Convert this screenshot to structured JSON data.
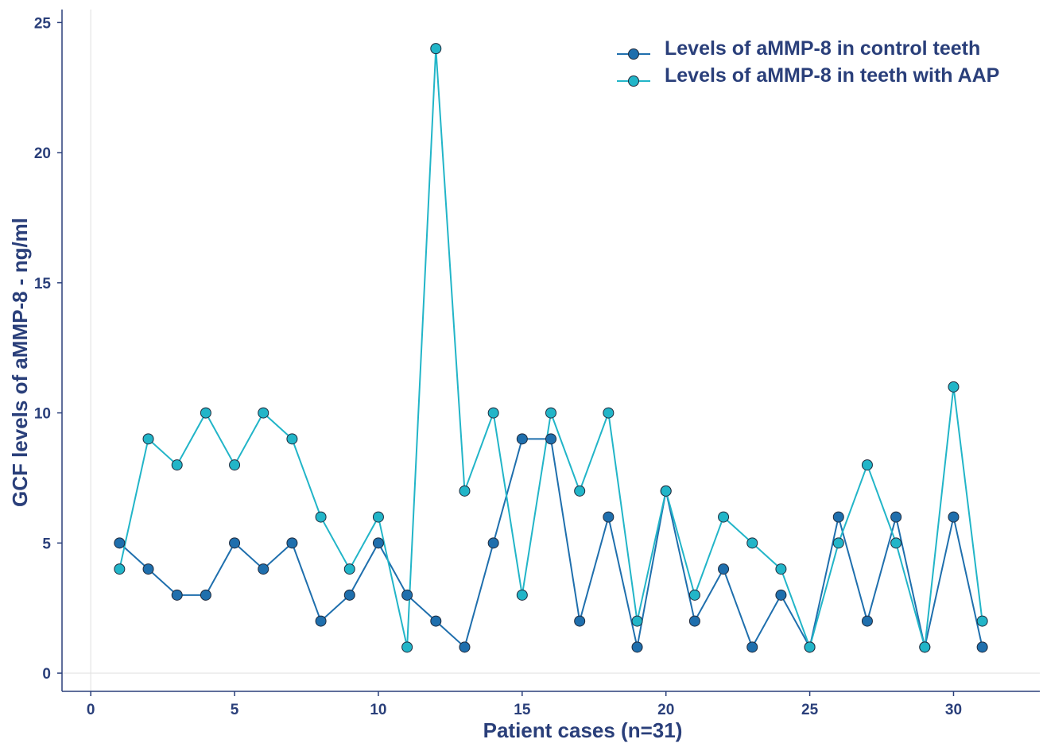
{
  "colors": {
    "axis": "#2a3f7a",
    "grid": "#e3e3e3",
    "marker_edge": "#1f2a3c"
  },
  "chart_data": {
    "type": "line",
    "xlabel": "Patient cases (n=31)",
    "ylabel": "GCF levels of aMMP-8 - ng/ml",
    "xlim": [
      -1,
      33
    ],
    "ylim": [
      -0.7,
      25.5
    ],
    "xticks": [
      0,
      5,
      10,
      15,
      20,
      25,
      30
    ],
    "yticks": [
      0,
      5,
      10,
      15,
      20,
      25
    ],
    "grid": "zero-lines-only",
    "legend_position": "top-right",
    "x": [
      1,
      2,
      3,
      4,
      5,
      6,
      7,
      8,
      9,
      10,
      11,
      12,
      13,
      14,
      15,
      16,
      17,
      18,
      19,
      20,
      21,
      22,
      23,
      24,
      25,
      26,
      27,
      28,
      29,
      30,
      31
    ],
    "series": [
      {
        "name": "Levels of aMMP-8 in control teeth",
        "color": "#1f6fad",
        "values": [
          5,
          4,
          3,
          3,
          5,
          4,
          5,
          2,
          3,
          5,
          3,
          2,
          1,
          5,
          9,
          9,
          2,
          6,
          1,
          7,
          2,
          4,
          1,
          3,
          1,
          6,
          2,
          6,
          1,
          6,
          1
        ]
      },
      {
        "name": "Levels of aMMP-8 in teeth with AAP",
        "color": "#22b5c8",
        "values": [
          4,
          9,
          8,
          10,
          8,
          10,
          9,
          6,
          4,
          6,
          1,
          24,
          7,
          10,
          3,
          10,
          7,
          10,
          2,
          7,
          3,
          6,
          5,
          4,
          1,
          5,
          8,
          5,
          1,
          11,
          2
        ]
      }
    ]
  }
}
